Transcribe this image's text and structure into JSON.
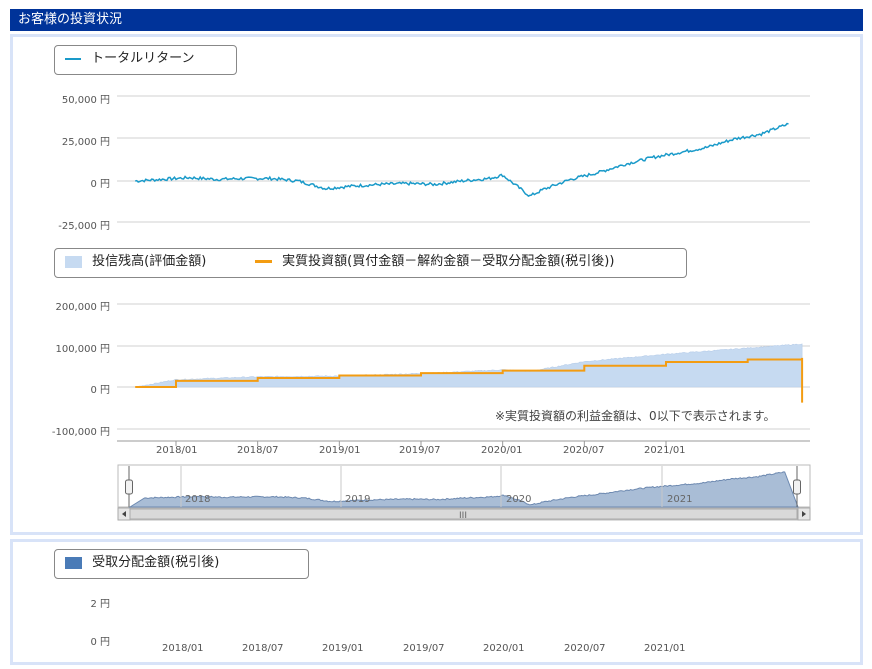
{
  "header": {
    "title": "お客様の投資状況"
  },
  "colors": {
    "header_bg": "#003399",
    "total_return_line": "#1a9ac9",
    "holdings_fill": "#c6daf1",
    "invested_line": "#f39c12",
    "distribution": "#4a7bb7",
    "navigator_fill": "#a9bdd6"
  },
  "chart_data": [
    {
      "type": "line",
      "legend": [
        "トータルリターン"
      ],
      "ylabels": [
        "50,000 円",
        "25,000 円",
        "0 円",
        "-25,000 円"
      ],
      "ylim": [
        -25000,
        50000
      ],
      "series": [
        {
          "name": "トータルリターン",
          "x": [
            "2017/10",
            "2017/12",
            "2018/02",
            "2018/04",
            "2018/06",
            "2018/08",
            "2018/10",
            "2018/12",
            "2019/02",
            "2019/04",
            "2019/06",
            "2019/08",
            "2019/10",
            "2019/12",
            "2020/01",
            "2020/03",
            "2020/04",
            "2020/06",
            "2020/08",
            "2020/10",
            "2020/12",
            "2021/02",
            "2021/04",
            "2021/06",
            "2021/08",
            "2021/10"
          ],
          "values": [
            0,
            1000,
            2000,
            1000,
            1500,
            1500,
            0,
            -4500,
            -3000,
            -2000,
            -1500,
            -2000,
            0,
            1500,
            3500,
            -9000,
            -5000,
            1000,
            5000,
            10000,
            14000,
            17000,
            20000,
            25000,
            28000,
            34000
          ]
        }
      ]
    },
    {
      "type": "area",
      "legend": [
        "投信残高(評価金額)",
        "実質投資額(買付金額－解約金額－受取分配金額(税引後))"
      ],
      "ylabels": [
        "200,000 円",
        "100,000 円",
        "0 円",
        "-100,000 円"
      ],
      "xlabels": [
        "2018/01",
        "2018/07",
        "2019/01",
        "2019/07",
        "2020/01",
        "2020/07",
        "2021/01"
      ],
      "ylim": [
        -100000,
        200000
      ],
      "series": [
        {
          "name": "投信残高(評価金額)",
          "x": [
            "2017/10",
            "2018/01",
            "2018/07",
            "2019/01",
            "2019/07",
            "2020/01",
            "2020/03",
            "2020/07",
            "2021/01",
            "2021/07",
            "2021/11"
          ],
          "values": [
            0,
            18000,
            25000,
            27000,
            33000,
            42000,
            38000,
            62000,
            80000,
            95000,
            105000
          ]
        },
        {
          "name": "実質投資額(買付金額－解約金額－受取分配金額(税引後))",
          "x": [
            "2017/10",
            "2018/01",
            "2018/07",
            "2019/01",
            "2019/07",
            "2020/01",
            "2020/07",
            "2021/01",
            "2021/07",
            "2021/11",
            "2021/11"
          ],
          "values": [
            0,
            15000,
            22000,
            28000,
            34000,
            40000,
            52000,
            61000,
            67000,
            71000,
            -38000
          ]
        }
      ],
      "note": "※実質投資額の利益金額は、0以下で表示されます。"
    },
    {
      "type": "area",
      "role": "navigator",
      "xlabels": [
        "2018",
        "2019",
        "2020",
        "2021"
      ],
      "scroll_label": "III"
    },
    {
      "type": "bar",
      "legend": [
        "受取分配金額(税引後)"
      ],
      "ylabels": [
        "2 円",
        "0 円"
      ],
      "xlabels": [
        "2018/01",
        "2018/07",
        "2019/01",
        "2019/07",
        "2020/01",
        "2020/07",
        "2021/01"
      ],
      "ylim": [
        0,
        2
      ],
      "series": [
        {
          "name": "受取分配金額(税引後)",
          "values": []
        }
      ]
    }
  ]
}
